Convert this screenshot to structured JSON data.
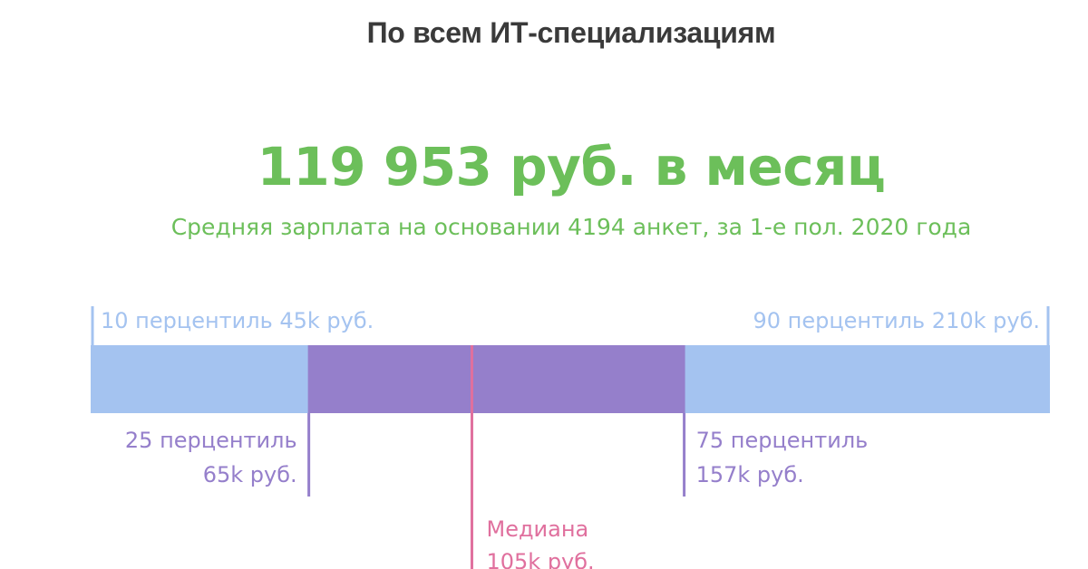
{
  "page": {
    "title": "По всем ИТ-специализациям",
    "headline": "119 953 руб. в месяц",
    "subtitle": "Средняя зарплата на основании 4194 анкет, за 1-е пол. 2020 года"
  },
  "colors": {
    "title": "#3a3a3a",
    "green": "#6cbf5a",
    "outer_band": "#a4c3f0",
    "inner_band": "#957fcb",
    "median": "#e0709e",
    "outer_label": "#a4c3f0",
    "inner_label": "#957fcb"
  },
  "chart_data": {
    "type": "bar",
    "axis_min": 12,
    "axis_max": 246,
    "percentiles": [
      {
        "key": "p10",
        "value": 45,
        "label_lines": [
          "10 перцентиль 45k руб."
        ]
      },
      {
        "key": "p25",
        "value": 65,
        "label_lines": [
          "25 перцентиль",
          "65k руб."
        ]
      },
      {
        "key": "median",
        "value": 105,
        "label_lines": [
          "Медиана",
          "105k руб."
        ]
      },
      {
        "key": "p75",
        "value": 157,
        "label_lines": [
          "75 перцентиль",
          "157k руб."
        ]
      },
      {
        "key": "p90",
        "value": 210,
        "label_lines": [
          "90 перцентиль 210k руб."
        ]
      }
    ]
  }
}
